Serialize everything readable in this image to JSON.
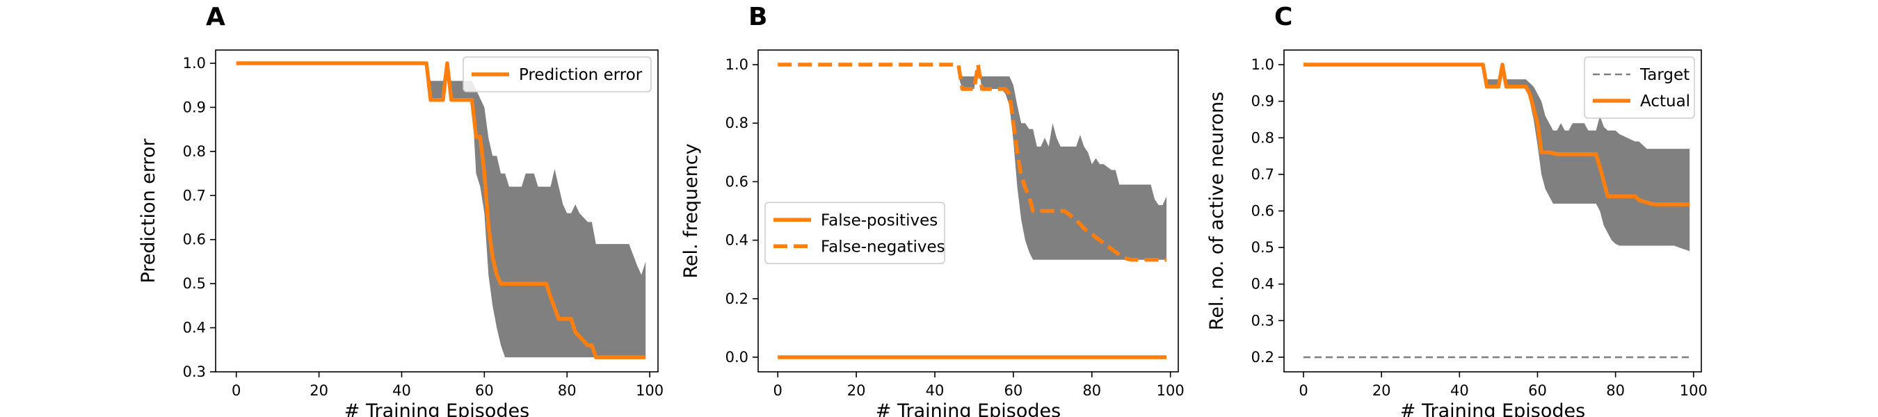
{
  "colors": {
    "orange": "#ff7f0e",
    "band": "#808080",
    "target": "#808080"
  },
  "chart_data": [
    {
      "type": "line",
      "panel_letter": "A",
      "title": "",
      "xlabel": "# Training Episodes",
      "ylabel": "Prediction error",
      "xlim": [
        -5,
        102
      ],
      "ylim": [
        0.3,
        1.03
      ],
      "xticks": [
        0,
        20,
        40,
        60,
        80,
        100
      ],
      "yticks": [
        0.3,
        0.4,
        0.5,
        0.6,
        0.7,
        0.8,
        0.9,
        1.0
      ],
      "ytick_labels": [
        "0.3",
        "0.4",
        "0.5",
        "0.6",
        "0.7",
        "0.8",
        "0.9",
        "1.0"
      ],
      "legend": {
        "position": "top-right",
        "entries": [
          {
            "label": "Prediction error",
            "style": "solid",
            "color": "#ff7f0e"
          }
        ]
      },
      "series": [
        {
          "name": "Prediction error",
          "style": "solid",
          "color": "#ff7f0e",
          "x": [
            0,
            46,
            47,
            48,
            49,
            50,
            51,
            52,
            56,
            57,
            58,
            59,
            60,
            61,
            62,
            63,
            64,
            65,
            66,
            75,
            76,
            78,
            79,
            81,
            82,
            85,
            86,
            87,
            99
          ],
          "y": [
            1.0,
            1.0,
            0.917,
            0.917,
            0.917,
            0.917,
            1.0,
            0.917,
            0.917,
            0.917,
            0.833,
            0.833,
            0.75,
            0.63,
            0.56,
            0.52,
            0.5,
            0.5,
            0.5,
            0.5,
            0.47,
            0.42,
            0.42,
            0.42,
            0.39,
            0.36,
            0.36,
            0.333,
            0.333
          ]
        }
      ],
      "band": {
        "x": [
          0,
          46,
          47,
          48,
          49,
          50,
          51,
          52,
          56,
          57,
          58,
          59,
          60,
          61,
          62,
          63,
          64,
          65,
          66,
          67,
          68,
          69,
          70,
          72,
          73,
          74,
          76,
          77,
          78,
          79,
          80,
          81,
          82,
          83,
          85,
          86,
          87,
          92,
          95,
          97,
          98,
          99
        ],
        "upper": [
          1.0,
          1.0,
          0.96,
          0.96,
          0.96,
          0.96,
          1.0,
          0.96,
          0.96,
          0.96,
          0.94,
          0.92,
          0.9,
          0.83,
          0.79,
          0.79,
          0.75,
          0.75,
          0.72,
          0.72,
          0.72,
          0.72,
          0.75,
          0.75,
          0.72,
          0.72,
          0.72,
          0.76,
          0.72,
          0.68,
          0.66,
          0.66,
          0.68,
          0.66,
          0.64,
          0.64,
          0.59,
          0.59,
          0.59,
          0.54,
          0.52,
          0.55
        ],
        "lower": [
          1.0,
          1.0,
          0.917,
          0.917,
          0.917,
          0.917,
          1.0,
          0.917,
          0.917,
          0.917,
          0.75,
          0.72,
          0.66,
          0.52,
          0.45,
          0.4,
          0.36,
          0.333,
          0.333,
          0.333,
          0.333,
          0.333,
          0.333,
          0.333,
          0.333,
          0.333,
          0.333,
          0.333,
          0.333,
          0.333,
          0.333,
          0.333,
          0.333,
          0.333,
          0.333,
          0.333,
          0.333,
          0.333,
          0.333,
          0.333,
          0.333,
          0.333
        ]
      }
    },
    {
      "type": "line",
      "panel_letter": "B",
      "title": "",
      "xlabel": "# Training Episodes",
      "ylabel": "Rel. frequency",
      "xlim": [
        -5,
        102
      ],
      "ylim": [
        -0.05,
        1.05
      ],
      "xticks": [
        0,
        20,
        40,
        60,
        80,
        100
      ],
      "yticks": [
        0.0,
        0.2,
        0.4,
        0.6,
        0.8,
        1.0
      ],
      "ytick_labels": [
        "0.0",
        "0.2",
        "0.4",
        "0.6",
        "0.8",
        "1.0"
      ],
      "legend": {
        "position": "center-left",
        "entries": [
          {
            "label": "False-positives",
            "style": "solid",
            "color": "#ff7f0e"
          },
          {
            "label": "False-negatives",
            "style": "dashed",
            "color": "#ff7f0e"
          }
        ]
      },
      "series": [
        {
          "name": "False-positives",
          "style": "solid",
          "color": "#ff7f0e",
          "x": [
            0,
            99
          ],
          "y": [
            0.0,
            0.0
          ]
        },
        {
          "name": "False-negatives",
          "style": "dashed",
          "color": "#ff7f0e",
          "x": [
            0,
            46,
            47,
            50,
            51,
            52,
            56,
            57,
            58,
            59,
            60,
            61,
            62,
            63,
            64,
            65,
            66,
            72,
            73,
            76,
            78,
            80,
            82,
            84,
            86,
            88,
            90,
            99
          ],
          "y": [
            1.0,
            1.0,
            0.917,
            0.917,
            1.0,
            0.917,
            0.917,
            0.917,
            0.917,
            0.9,
            0.8,
            0.7,
            0.62,
            0.58,
            0.55,
            0.5,
            0.5,
            0.5,
            0.5,
            0.47,
            0.44,
            0.42,
            0.4,
            0.38,
            0.36,
            0.34,
            0.333,
            0.333
          ]
        }
      ],
      "band": {
        "x": [
          46,
          47,
          48,
          50,
          51,
          52,
          56,
          57,
          58,
          59,
          60,
          61,
          62,
          63,
          64,
          65,
          66,
          67,
          68,
          69,
          70,
          71,
          72,
          73,
          74,
          76,
          77,
          78,
          79,
          80,
          81,
          82,
          83,
          85,
          86,
          87,
          92,
          95,
          96,
          97,
          98,
          99
        ],
        "upper": [
          1.0,
          0.96,
          0.96,
          0.96,
          1.0,
          0.96,
          0.96,
          0.96,
          0.96,
          0.96,
          0.93,
          0.86,
          0.8,
          0.8,
          0.78,
          0.78,
          0.72,
          0.72,
          0.75,
          0.72,
          0.8,
          0.75,
          0.72,
          0.72,
          0.72,
          0.72,
          0.76,
          0.72,
          0.7,
          0.66,
          0.68,
          0.66,
          0.66,
          0.64,
          0.64,
          0.59,
          0.59,
          0.59,
          0.54,
          0.52,
          0.52,
          0.55
        ],
        "lower": [
          0.96,
          0.917,
          0.917,
          0.917,
          1.0,
          0.917,
          0.917,
          0.917,
          0.9,
          0.86,
          0.74,
          0.58,
          0.47,
          0.4,
          0.36,
          0.333,
          0.333,
          0.333,
          0.333,
          0.333,
          0.333,
          0.333,
          0.333,
          0.333,
          0.333,
          0.333,
          0.333,
          0.333,
          0.333,
          0.333,
          0.333,
          0.333,
          0.333,
          0.333,
          0.333,
          0.333,
          0.333,
          0.333,
          0.333,
          0.333,
          0.333,
          0.333
        ]
      }
    },
    {
      "type": "line",
      "panel_letter": "C",
      "title": "",
      "xlabel": "# Training Episodes",
      "ylabel": "Rel. no. of active neurons",
      "xlim": [
        -5,
        102
      ],
      "ylim": [
        0.16,
        1.04
      ],
      "xticks": [
        0,
        20,
        40,
        60,
        80,
        100
      ],
      "yticks": [
        0.2,
        0.3,
        0.4,
        0.5,
        0.6,
        0.7,
        0.8,
        0.9,
        1.0
      ],
      "ytick_labels": [
        "0.2",
        "0.3",
        "0.4",
        "0.5",
        "0.6",
        "0.7",
        "0.8",
        "0.9",
        "1.0"
      ],
      "legend": {
        "position": "top-right",
        "entries": [
          {
            "label": "Target",
            "style": "dashed-thin",
            "color": "#808080"
          },
          {
            "label": "Actual",
            "style": "solid",
            "color": "#ff7f0e"
          }
        ]
      },
      "series": [
        {
          "name": "Target",
          "style": "dashed-thin",
          "color": "#808080",
          "x": [
            0,
            99
          ],
          "y": [
            0.2,
            0.2
          ]
        },
        {
          "name": "Actual",
          "style": "solid",
          "color": "#ff7f0e",
          "x": [
            0,
            46,
            47,
            48,
            49,
            50,
            51,
            52,
            56,
            57,
            58,
            59,
            60,
            61,
            62,
            63,
            64,
            65,
            66,
            67,
            68,
            75,
            76,
            77,
            78,
            79,
            85,
            86,
            89,
            90,
            99
          ],
          "y": [
            1.0,
            1.0,
            0.94,
            0.94,
            0.94,
            0.94,
            1.0,
            0.94,
            0.94,
            0.94,
            0.92,
            0.88,
            0.84,
            0.76,
            0.76,
            0.76,
            0.758,
            0.755,
            0.755,
            0.755,
            0.755,
            0.755,
            0.72,
            0.68,
            0.64,
            0.64,
            0.64,
            0.63,
            0.62,
            0.618,
            0.618
          ]
        }
      ],
      "band": {
        "x": [
          0,
          46,
          47,
          48,
          49,
          50,
          51,
          52,
          56,
          57,
          58,
          59,
          60,
          61,
          62,
          63,
          64,
          65,
          66,
          67,
          68,
          69,
          70,
          72,
          73,
          74,
          75,
          76,
          77,
          78,
          79,
          80,
          81,
          85,
          86,
          87,
          88,
          89,
          90,
          95,
          99
        ],
        "upper": [
          1.0,
          1.0,
          0.96,
          0.96,
          0.96,
          0.96,
          1.0,
          0.96,
          0.96,
          0.96,
          0.95,
          0.94,
          0.92,
          0.9,
          0.86,
          0.84,
          0.82,
          0.82,
          0.84,
          0.82,
          0.82,
          0.84,
          0.84,
          0.84,
          0.82,
          0.82,
          0.82,
          0.86,
          0.83,
          0.82,
          0.82,
          0.82,
          0.81,
          0.79,
          0.79,
          0.78,
          0.77,
          0.77,
          0.77,
          0.77,
          0.77
        ],
        "lower": [
          1.0,
          1.0,
          0.94,
          0.94,
          0.94,
          0.94,
          1.0,
          0.94,
          0.94,
          0.94,
          0.9,
          0.85,
          0.78,
          0.7,
          0.66,
          0.64,
          0.62,
          0.62,
          0.62,
          0.62,
          0.62,
          0.62,
          0.62,
          0.62,
          0.62,
          0.62,
          0.62,
          0.6,
          0.56,
          0.54,
          0.52,
          0.51,
          0.505,
          0.505,
          0.505,
          0.505,
          0.505,
          0.505,
          0.505,
          0.505,
          0.49
        ]
      }
    }
  ]
}
